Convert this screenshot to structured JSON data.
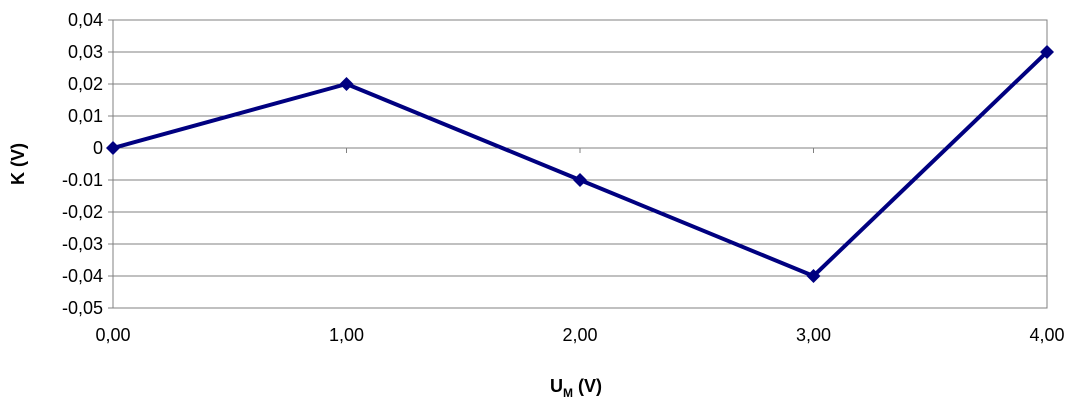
{
  "chart_data": {
    "type": "line",
    "xlabel": {
      "main": "U",
      "sub": "M",
      "unit": " (V)"
    },
    "ylabel": "K (V)",
    "x": [
      0,
      1,
      2,
      3,
      4
    ],
    "x_tick_labels": [
      "0,00",
      "1,00",
      "2,00",
      "3,00",
      "4,00"
    ],
    "xlim": [
      0,
      4
    ],
    "y_ticks": [
      0.04,
      0.03,
      0.02,
      0.01,
      0,
      -0.01,
      -0.02,
      -0.03,
      -0.04,
      -0.05
    ],
    "y_tick_labels": [
      "0,04",
      "0,03",
      "0,02",
      "0,01",
      "0",
      "-0.01",
      "-0,02",
      "-0,03",
      "-0,04",
      "-0,05"
    ],
    "ylim": [
      -0.05,
      0.04
    ],
    "series": [
      {
        "values": [
          0,
          0.02,
          -0.01,
          -0.04,
          0.03
        ],
        "color": "#000080",
        "marker": "diamond"
      }
    ],
    "grid": "horizontal"
  }
}
